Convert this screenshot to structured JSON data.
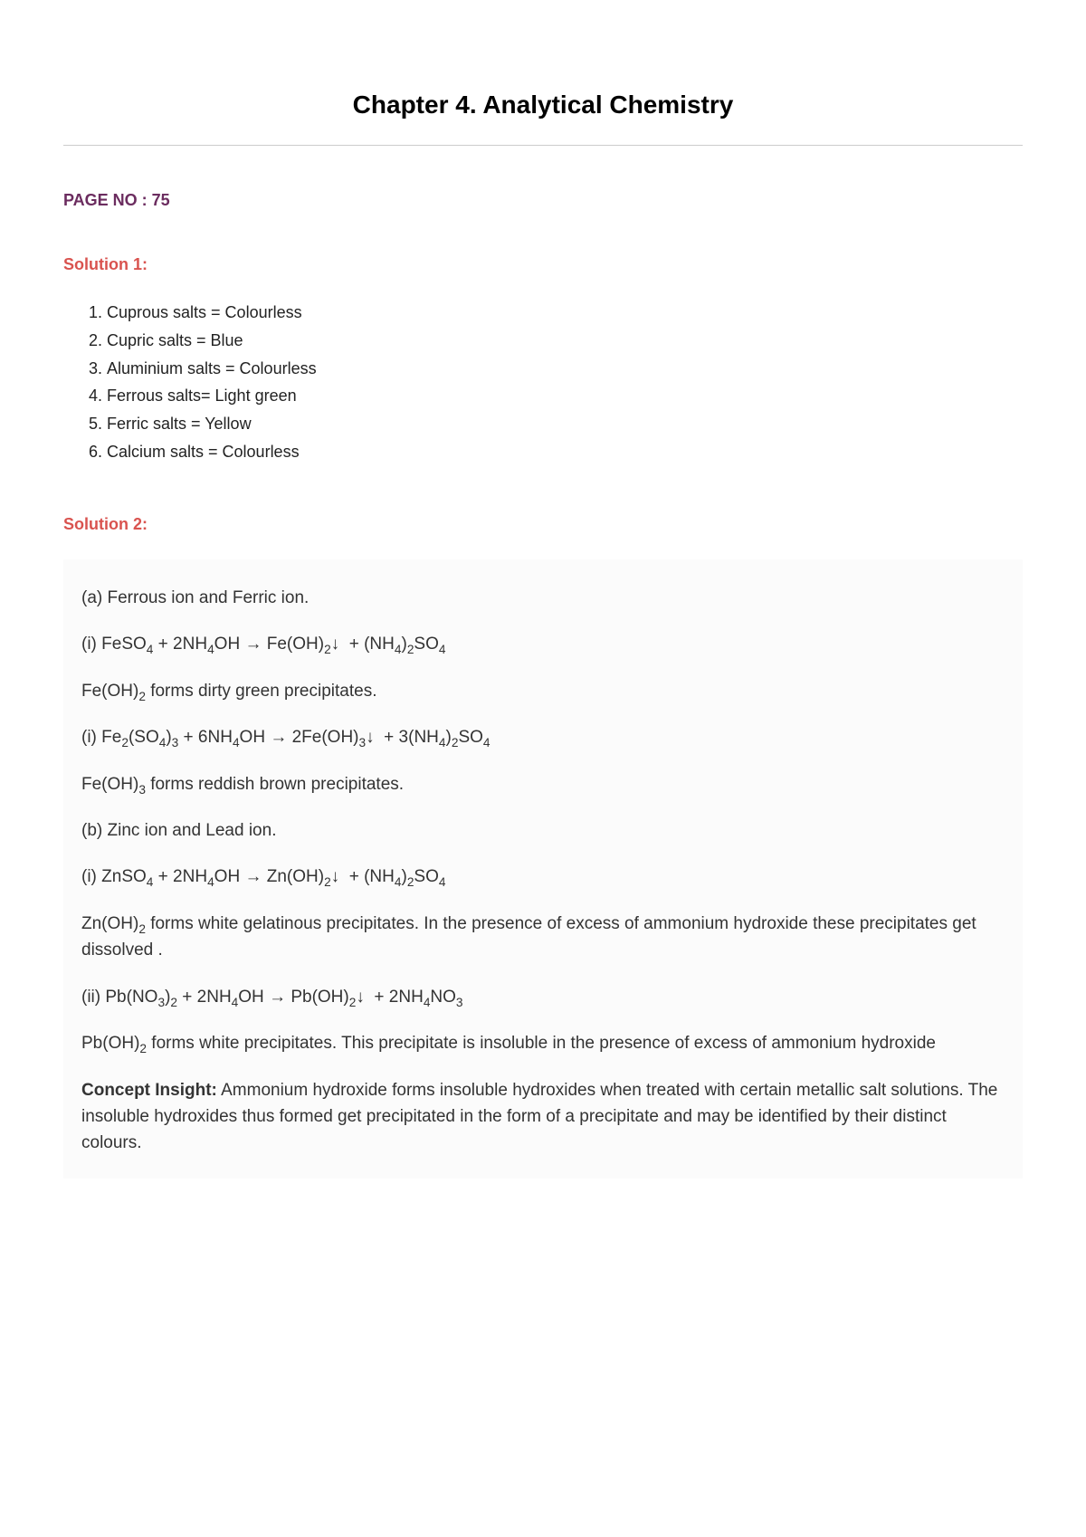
{
  "chapter_title": "Chapter 4. Analytical Chemistry",
  "page_no": "PAGE NO : 75",
  "solution1": {
    "heading": "Solution 1:",
    "items": [
      "Cuprous salts = Colourless",
      "Cupric salts = Blue",
      "Aluminium salts = Colourless",
      "Ferrous salts= Light green",
      "Ferric salts = Yellow",
      "Calcium salts = Colourless"
    ]
  },
  "solution2": {
    "heading": "Solution 2:",
    "a_label": "(a) Ferrous ion and Ferric ion.",
    "a_eq1": "(i) FeSO₄ + 2NH₄OH → Fe(OH)₂↓  + (NH₄)₂SO₄",
    "a_note1": "Fe(OH)₂ forms dirty green precipitates.",
    "a_eq2": "(i) Fe₂(SO₄)₃ + 6NH₄OH → 2Fe(OH)₃↓  + 3(NH₄)₂SO₄",
    "a_note2": "Fe(OH)₃ forms reddish brown precipitates.",
    "b_label": "(b) Zinc ion and Lead ion.",
    "b_eq1": "(i) ZnSO₄ + 2NH₄OH → Zn(OH)₂↓  + (NH₄)₂SO₄",
    "b_note1": "Zn(OH)₂ forms white gelatinous precipitates. In the presence of excess of ammonium hydroxide these precipitates get dissolved .",
    "b_eq2": "(ii) Pb(NO₃)₂ + 2NH₄OH → Pb(OH)₂↓  + 2NH₄NO₃",
    "b_note2": "Pb(OH)₂ forms white precipitates. This precipitate is insoluble in the presence of excess of ammonium hydroxide",
    "concept_label": "Concept Insight:",
    "concept_text": "  Ammonium hydroxide forms insoluble hydroxides when treated with certain metallic salt solutions. The insoluble hydroxides thus formed get precipitated in the form of a precipitate and may be identified by their distinct colours."
  },
  "colors": {
    "heading_purple": "#6b2c5f",
    "heading_red": "#d9534f",
    "body_text": "#333333",
    "bg_block": "#fbfbfb",
    "rule": "#cccccc"
  }
}
